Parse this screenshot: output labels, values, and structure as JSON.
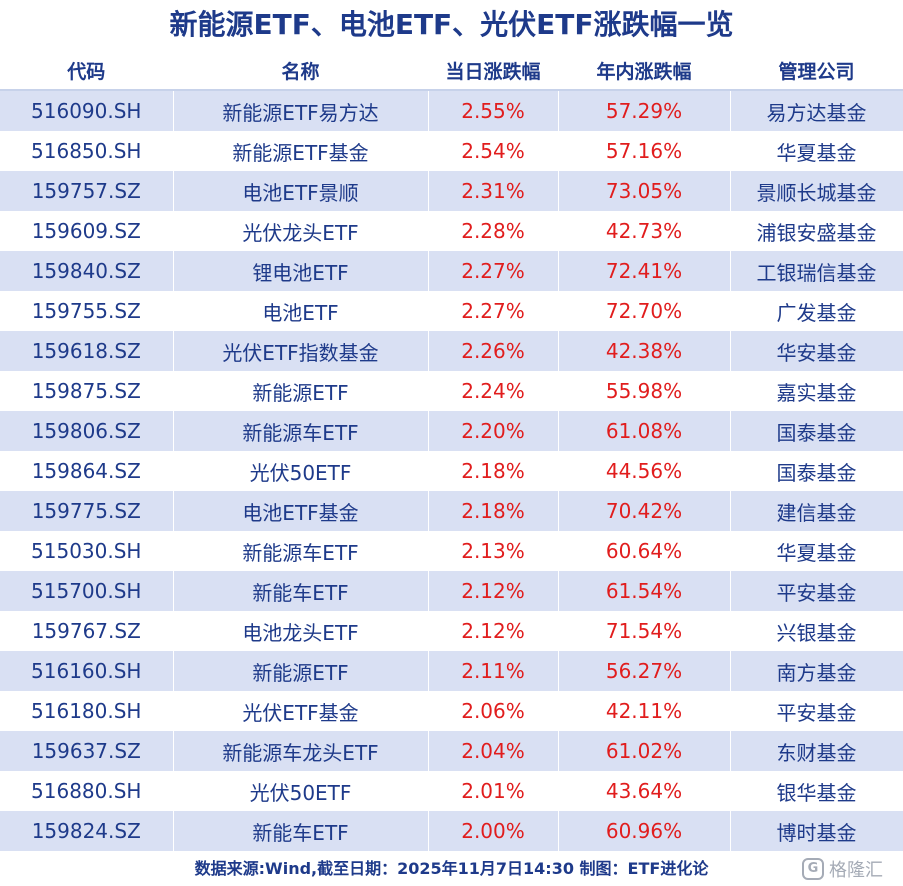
{
  "title": "新能源ETF、电池ETF、光伏ETF涨跌幅一览",
  "headers": [
    "代码",
    "名称",
    "当日涨跌幅",
    "年内涨跌幅",
    "管理公司"
  ],
  "rows": [
    [
      "516090.SH",
      "新能源ETF易方达",
      "2.55%",
      "57.29%",
      "易方达基金"
    ],
    [
      "516850.SH",
      "新能源ETF基金",
      "2.54%",
      "57.16%",
      "华夏基金"
    ],
    [
      "159757.SZ",
      "电池ETF景顺",
      "2.31%",
      "73.05%",
      "景顺长城基金"
    ],
    [
      "159609.SZ",
      "光伏龙头ETF",
      "2.28%",
      "42.73%",
      "浦银安盛基金"
    ],
    [
      "159840.SZ",
      "锂电池ETF",
      "2.27%",
      "72.41%",
      "工银瑞信基金"
    ],
    [
      "159755.SZ",
      "电池ETF",
      "2.27%",
      "72.70%",
      "广发基金"
    ],
    [
      "159618.SZ",
      "光伏ETF指数基金",
      "2.26%",
      "42.38%",
      "华安基金"
    ],
    [
      "159875.SZ",
      "新能源ETF",
      "2.24%",
      "55.98%",
      "嘉实基金"
    ],
    [
      "159806.SZ",
      "新能源车ETF",
      "2.20%",
      "61.08%",
      "国泰基金"
    ],
    [
      "159864.SZ",
      "光伏50ETF",
      "2.18%",
      "44.56%",
      "国泰基金"
    ],
    [
      "159775.SZ",
      "电池ETF基金",
      "2.18%",
      "70.42%",
      "建信基金"
    ],
    [
      "515030.SH",
      "新能源车ETF",
      "2.13%",
      "60.64%",
      "华夏基金"
    ],
    [
      "515700.SH",
      "新能车ETF",
      "2.12%",
      "61.54%",
      "平安基金"
    ],
    [
      "159767.SZ",
      "电池龙头ETF",
      "2.12%",
      "71.54%",
      "兴银基金"
    ],
    [
      "516160.SH",
      "新能源ETF",
      "2.11%",
      "56.27%",
      "南方基金"
    ],
    [
      "516180.SH",
      "光伏ETF基金",
      "2.06%",
      "42.11%",
      "平安基金"
    ],
    [
      "159637.SZ",
      "新能源车龙头ETF",
      "2.04%",
      "61.02%",
      "东财基金"
    ],
    [
      "516880.SH",
      "光伏50ETF",
      "2.01%",
      "43.64%",
      "银华基金"
    ],
    [
      "159824.SZ",
      "新能车ETF",
      "2.00%",
      "60.96%",
      "博时基金"
    ]
  ],
  "footer": "数据来源:Wind,截至日期：2025年11月7日14:30  制图：ETF进化论",
  "watermark": {
    "logo": "G",
    "text": "格隆汇"
  },
  "colors": {
    "header_text": "#1e3a8a",
    "stripe": "#d9e0f3",
    "positive": "#e11d1d"
  }
}
